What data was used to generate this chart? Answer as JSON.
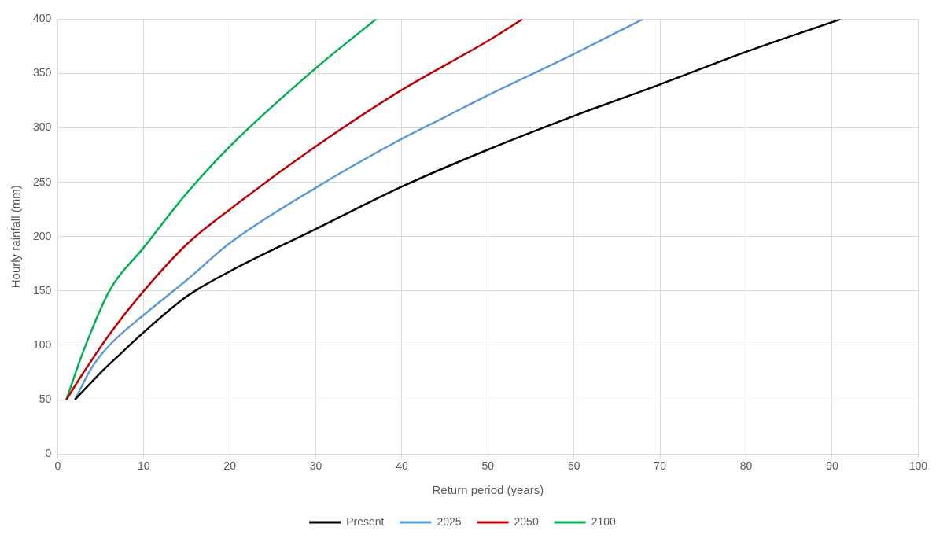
{
  "chart_data": {
    "type": "line",
    "xlabel": "Return period (years)",
    "ylabel": "Hourly rainfall (mm)",
    "xlim": [
      0,
      100
    ],
    "xticks": [
      0,
      10,
      20,
      30,
      40,
      50,
      60,
      70,
      80,
      90,
      100
    ],
    "ylim": [
      0,
      400
    ],
    "yticks": [
      0,
      50,
      100,
      150,
      200,
      250,
      300,
      350,
      400
    ],
    "grid": true,
    "legend": "bottom",
    "marker": "none",
    "line_style": "solid",
    "series": [
      {
        "name": "Present",
        "color": "#000000",
        "x": [
          2,
          5,
          7,
          10,
          15,
          20,
          30,
          40,
          50,
          60,
          70,
          80,
          91
        ],
        "values": [
          50,
          75,
          90,
          112,
          145,
          168,
          207,
          246,
          280,
          311,
          340,
          370,
          400
        ]
      },
      {
        "name": "2025",
        "color": "#5b9bd5",
        "x": [
          2,
          4,
          6,
          10,
          15,
          20,
          30,
          40,
          45,
          50,
          60,
          68
        ],
        "values": [
          50,
          80,
          100,
          128,
          160,
          194,
          245,
          290,
          310,
          330,
          368,
          400
        ]
      },
      {
        "name": "2050",
        "color": "#c00000",
        "x": [
          1,
          3,
          6,
          10,
          15,
          20,
          30,
          40,
          50,
          54
        ],
        "values": [
          50,
          75,
          110,
          150,
          193,
          225,
          283,
          335,
          380,
          400
        ]
      },
      {
        "name": "2100",
        "color": "#00b050",
        "x": [
          1,
          3,
          6,
          10,
          15,
          20,
          30,
          37
        ],
        "values": [
          50,
          95,
          150,
          190,
          240,
          283,
          355,
          400
        ]
      }
    ]
  }
}
